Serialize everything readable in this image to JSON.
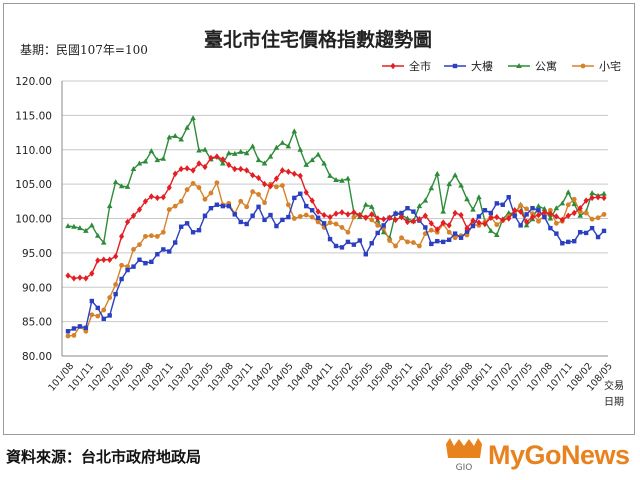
{
  "chart_data": {
    "type": "line",
    "title": "臺北市住宅價格指數趨勢圖",
    "subtitle": "基期：民國107年=100",
    "xlabel": "交易日期",
    "ylim": [
      80,
      120
    ],
    "yticks": [
      "80.00",
      "85.00",
      "90.00",
      "95.00",
      "100.00",
      "105.00",
      "110.00",
      "115.00",
      "120.00"
    ],
    "grid": "horizontal",
    "legend_position": "top-right",
    "x_tick_labels": [
      "101/08",
      "101/11",
      "102/02",
      "102/05",
      "102/08",
      "102/11",
      "103/02",
      "103/05",
      "103/08",
      "103/11",
      "104/02",
      "104/05",
      "104/08",
      "104/11",
      "105/02",
      "105/05",
      "105/08",
      "105/11",
      "106/02",
      "106/05",
      "106/08",
      "106/11",
      "107/02",
      "107/05",
      "107/08",
      "107/11",
      "108/02",
      "108/05"
    ],
    "series": [
      {
        "name": "全市",
        "color": "#e31e24",
        "marker": "diamond",
        "values": [
          91.7,
          91.3,
          91.4,
          91.3,
          92.0,
          93.9,
          94.0,
          94.0,
          94.5,
          97.4,
          99.5,
          100.4,
          101.3,
          102.5,
          103.2,
          103.0,
          103.1,
          104.5,
          106.5,
          107.2,
          107.3,
          107.0,
          108.0,
          107.5,
          108.8,
          109.0,
          108.6,
          107.8,
          107.2,
          107.2,
          107.0,
          106.3,
          105.9,
          105.0,
          104.7,
          105.8,
          107.0,
          106.8,
          106.5,
          106.2,
          103.8,
          102.6,
          101.0,
          100.5,
          100.2,
          100.7,
          100.9,
          100.6,
          100.9,
          100.5,
          100.1,
          100.6,
          100.0,
          99.9,
          100.1,
          99.8,
          100.2,
          99.5,
          99.6,
          99.9,
          100.4,
          99.3,
          98.4,
          99.4,
          99.0,
          100.8,
          100.5,
          98.6,
          99.7,
          99.4,
          99.2,
          100.1,
          100.2,
          99.8,
          100.0,
          101.2,
          101.0,
          99.5,
          100.2,
          100.5,
          100.9,
          100.7,
          100.3,
          99.8,
          100.4,
          100.8,
          101.5,
          102.6,
          103.0,
          103.1,
          103.0
        ]
      },
      {
        "name": "大樓",
        "color": "#2b3fc0",
        "marker": "square",
        "values": [
          83.6,
          84.0,
          84.3,
          84.1,
          88.0,
          87.0,
          85.4,
          85.9,
          89.0,
          91.2,
          92.5,
          93.0,
          94.0,
          93.5,
          93.7,
          94.8,
          95.5,
          95.2,
          96.5,
          98.8,
          99.3,
          98.0,
          98.3,
          100.4,
          101.5,
          102.0,
          101.8,
          101.8,
          100.6,
          99.5,
          99.2,
          100.4,
          101.7,
          99.8,
          100.5,
          98.9,
          99.8,
          100.2,
          103.0,
          103.6,
          101.8,
          101.2,
          100.1,
          99.3,
          97.0,
          96.0,
          95.8,
          96.6,
          96.2,
          96.8,
          94.8,
          96.4,
          97.9,
          99.0,
          100.1,
          100.7,
          100.8,
          101.5,
          101.0,
          99.7,
          98.7,
          96.3,
          96.7,
          96.6,
          96.9,
          97.8,
          97.2,
          98.1,
          98.9,
          100.3,
          101.2,
          100.8,
          102.2,
          102.0,
          103.1,
          100.4,
          99.0,
          100.6,
          101.5,
          101.2,
          100.2,
          98.6,
          97.8,
          96.4,
          96.6,
          96.7,
          98.0,
          97.9,
          98.6,
          97.3,
          98.2
        ]
      },
      {
        "name": "公寓",
        "color": "#2e8b3a",
        "marker": "triangle",
        "values": [
          98.9,
          98.8,
          98.6,
          98.2,
          99.0,
          97.5,
          96.5,
          101.8,
          105.3,
          104.7,
          104.6,
          107.2,
          108.0,
          108.3,
          109.8,
          108.5,
          108.7,
          111.8,
          112.0,
          111.5,
          113.2,
          114.6,
          109.9,
          110.0,
          108.6,
          109.0,
          108.0,
          109.5,
          109.4,
          109.7,
          109.5,
          110.5,
          108.5,
          108.0,
          109.0,
          110.3,
          111.0,
          110.5,
          112.7,
          110.0,
          107.8,
          108.5,
          109.3,
          108.0,
          106.2,
          105.6,
          105.5,
          105.8,
          100.9,
          100.2,
          102.0,
          101.7,
          99.7,
          98.0,
          97.2,
          100.8,
          100.5,
          100.0,
          99.6,
          101.8,
          102.6,
          104.4,
          106.5,
          101.0,
          105.0,
          106.3,
          104.8,
          102.8,
          101.3,
          103.1,
          99.6,
          98.2,
          97.6,
          99.9,
          100.8,
          100.7,
          102.0,
          99.0,
          99.9,
          101.8,
          101.4,
          100.0,
          101.5,
          102.2,
          103.8,
          102.1,
          100.4,
          101.0,
          103.7,
          103.3,
          103.6
        ]
      },
      {
        "name": "小宅",
        "color": "#d6822b",
        "marker": "circle",
        "values": [
          82.9,
          83.0,
          84.3,
          83.6,
          86.0,
          85.8,
          86.7,
          88.5,
          90.4,
          93.2,
          93.0,
          95.5,
          96.2,
          97.4,
          97.5,
          97.4,
          98.0,
          101.3,
          101.8,
          102.5,
          104.2,
          105.1,
          104.5,
          102.8,
          103.7,
          105.2,
          102.0,
          102.2,
          100.7,
          102.5,
          101.7,
          103.9,
          103.5,
          102.3,
          105.0,
          104.6,
          104.8,
          102.0,
          100.0,
          100.3,
          100.5,
          100.2,
          99.5,
          98.7,
          99.4,
          99.2,
          98.7,
          98.0,
          100.2,
          100.5,
          100.2,
          99.8,
          99.0,
          98.6,
          96.8,
          96.0,
          97.2,
          96.6,
          96.5,
          96.0,
          97.8,
          98.3,
          98.0,
          99.2,
          98.0,
          97.2,
          97.5,
          97.6,
          99.1,
          99.0,
          99.5,
          100.2,
          99.1,
          99.7,
          100.3,
          100.6,
          101.9,
          101.4,
          100.7,
          99.6,
          100.4,
          101.2,
          99.3,
          99.6,
          102.0,
          102.8,
          101.0,
          100.8,
          99.9,
          100.1,
          100.6
        ]
      }
    ]
  },
  "footer": {
    "source": "資料來源：台北市政府地政局",
    "logo_text": "MyGoNews",
    "logo_mark": "GIO"
  }
}
